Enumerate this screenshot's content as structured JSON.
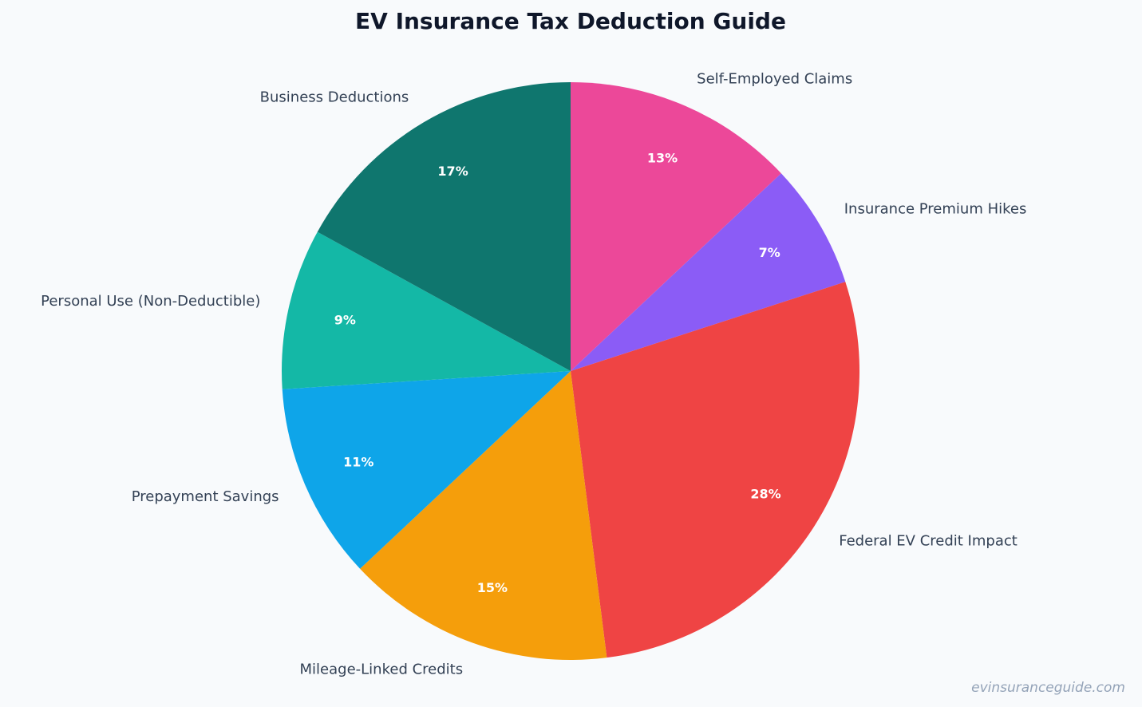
{
  "chart_data": {
    "type": "pie",
    "title": "EV Insurance Tax Deduction Guide",
    "categories": [
      "Self-Employed Claims",
      "Insurance Premium Hikes",
      "Federal EV Credit Impact",
      "Mileage-Linked Credits",
      "Prepayment Savings",
      "Personal Use (Non-Deductible)",
      "Business Deductions"
    ],
    "values": [
      13,
      7,
      28,
      15,
      11,
      9,
      17
    ],
    "value_labels": [
      "13%",
      "7%",
      "28%",
      "15%",
      "11%",
      "9%",
      "17%"
    ],
    "colors": [
      "#ec4899",
      "#8b5cf6",
      "#ef4444",
      "#f59e0b",
      "#0ea5e9",
      "#14b8a6",
      "#0f766e"
    ],
    "watermark": "evinsuranceguide.com"
  }
}
